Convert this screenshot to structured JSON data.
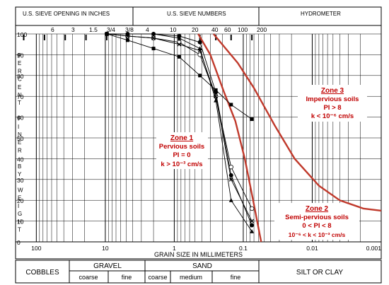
{
  "header": {
    "inches_title": "U.S. SIEVE OPENING IN INCHES",
    "numbers_title": "U.S. SIEVE NUMBERS",
    "hydrometer_title": "HYDROMETER",
    "inch_labels": [
      "6",
      "3",
      "1.5",
      "3/4",
      "3/8"
    ],
    "number_labels": [
      "4",
      "10",
      "20",
      "40",
      "60",
      "100",
      "200"
    ]
  },
  "axes": {
    "xlabel": "GRAIN SIZE IN MILLIMETERS",
    "ylabel_letters": [
      "P",
      "E",
      "R",
      "C",
      "E",
      "N",
      "T",
      "",
      "F",
      "I",
      "N",
      "E",
      "R",
      "",
      "B",
      "Y",
      "",
      "W",
      "E",
      "I",
      "G",
      "H",
      "T"
    ],
    "x_ticks": [
      "100",
      "10",
      "1",
      "0.1",
      "0.01",
      "0.001"
    ],
    "y_ticks": [
      "100",
      "90",
      "80",
      "70",
      "60",
      "50",
      "40",
      "30",
      "20",
      "10",
      "0"
    ]
  },
  "zones": {
    "zone1": {
      "title": "Zone 1",
      "l1": "Pervious soils",
      "l2": "PI = 0",
      "l3": "k > 10⁻³ cm/s"
    },
    "zone2": {
      "title": "Zone 2",
      "l1": "Semi-pervious soils",
      "l2": "0 < PI < 8",
      "l3": "10⁻⁶ < k < 10⁻³ cm/s"
    },
    "zone3": {
      "title": "Zone 3",
      "l1": "Impervious soils",
      "l2": "PI > 8",
      "l3": "k < 10⁻⁶ cm/s"
    }
  },
  "classification": {
    "cobbles": "COBBLES",
    "gravel": "GRAVEL",
    "gravel_coarse": "coarse",
    "gravel_fine": "fine",
    "sand": "SAND",
    "sand_coarse": "coarse",
    "sand_medium": "medium",
    "sand_fine": "fine",
    "silt_clay": "SILT OR CLAY"
  },
  "colors": {
    "boundary": "#c0392b",
    "grid": "#000000",
    "zone_text": "#c00000"
  },
  "chart_data": {
    "type": "line",
    "x_scale": "log",
    "x_reversed": true,
    "xlim": [
      200,
      0.001
    ],
    "ylim": [
      0,
      100
    ],
    "xlabel": "GRAIN SIZE IN MILLIMETERS",
    "series": [
      {
        "marker": "filled-circle",
        "points": [
          [
            9.5,
            100
          ],
          [
            4.75,
            100
          ],
          [
            2.0,
            100
          ],
          [
            0.85,
            99
          ],
          [
            0.425,
            96
          ],
          [
            0.25,
            72
          ],
          [
            0.15,
            32
          ],
          [
            0.075,
            8
          ]
        ]
      },
      {
        "marker": "open-circle",
        "points": [
          [
            9.5,
            100
          ],
          [
            4.75,
            99
          ],
          [
            2.0,
            98
          ],
          [
            0.85,
            96
          ],
          [
            0.425,
            90
          ],
          [
            0.25,
            70
          ],
          [
            0.15,
            36
          ],
          [
            0.075,
            16
          ]
        ]
      },
      {
        "marker": "x",
        "points": [
          [
            9.5,
            100
          ],
          [
            4.75,
            99
          ],
          [
            2.0,
            98
          ],
          [
            0.85,
            95
          ],
          [
            0.425,
            92
          ],
          [
            0.25,
            70
          ],
          [
            0.15,
            30
          ],
          [
            0.075,
            10
          ]
        ]
      },
      {
        "marker": "filled-triangle",
        "points": [
          [
            9.5,
            100
          ],
          [
            4.75,
            100
          ],
          [
            2.0,
            100
          ],
          [
            0.85,
            98
          ],
          [
            0.425,
            93
          ],
          [
            0.25,
            68
          ],
          [
            0.15,
            20
          ],
          [
            0.075,
            5
          ]
        ]
      },
      {
        "marker": "filled-square",
        "points": [
          [
            9.5,
            100
          ],
          [
            4.75,
            97
          ],
          [
            2.0,
            93
          ],
          [
            0.85,
            89
          ],
          [
            0.425,
            80
          ],
          [
            0.25,
            73
          ],
          [
            0.15,
            66
          ],
          [
            0.075,
            59
          ]
        ]
      }
    ],
    "boundaries": [
      {
        "points": [
          [
            0.45,
            100
          ],
          [
            0.3,
            90
          ],
          [
            0.19,
            72
          ],
          [
            0.13,
            58
          ],
          [
            0.095,
            40
          ],
          [
            0.072,
            20
          ],
          [
            0.055,
            0
          ]
        ]
      },
      {
        "points": [
          [
            0.27,
            100
          ],
          [
            0.12,
            86
          ],
          [
            0.07,
            74
          ],
          [
            0.035,
            56
          ],
          [
            0.018,
            40
          ],
          [
            0.008,
            27
          ],
          [
            0.004,
            20
          ],
          [
            0.0018,
            16
          ],
          [
            0.001,
            15
          ]
        ]
      }
    ]
  }
}
